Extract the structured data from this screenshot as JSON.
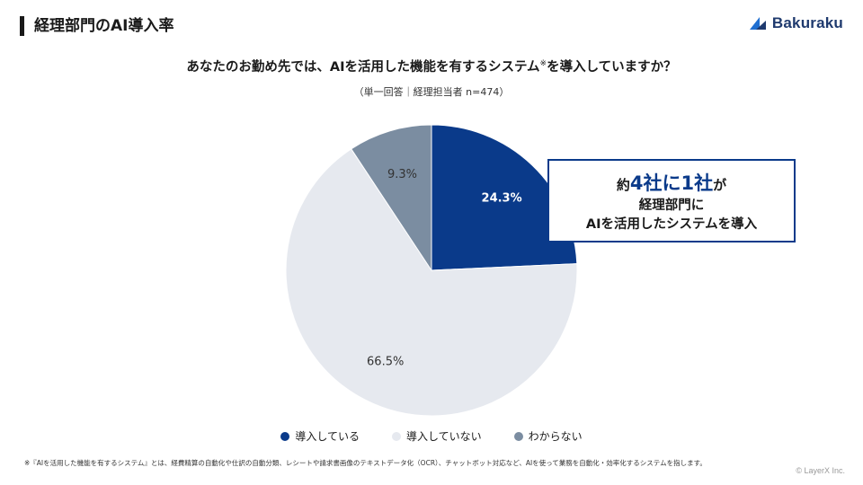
{
  "header": {
    "title": "経理部門のAI導入率"
  },
  "logo": {
    "text": "Bakuraku"
  },
  "question": {
    "text": "あなたのお勤め先では、AIを活用した機能を有するシステム",
    "mark": "※",
    "text_after": "を導入していますか？"
  },
  "sample": {
    "text": "（単一回答｜経理担当者 n=474）"
  },
  "callout": {
    "prefix": "約",
    "emphasis": "4社に1社",
    "suffix": "が",
    "line2": "経理部門に",
    "line3": "AIを活用したシステムを導入"
  },
  "footnote": {
    "text": "※『AIを活用した機能を有するシステム』とは、経費精算の自動化や仕訳の自動分類、レシートや請求書画像のテキストデータ化（OCR）、チャットボット対応など、AIを使って業務を自動化・効率化するシステムを指します。"
  },
  "copyright": {
    "text": "© LayerX Inc."
  },
  "colors": {
    "accent": "#0a3a8a",
    "light": "#e6e9ef",
    "gray": "#7b8da1"
  },
  "chart_data": {
    "type": "pie",
    "title": "",
    "slices": [
      {
        "name": "導入している",
        "value": 24.3,
        "label": "24.3%",
        "color": "#0a3a8a",
        "label_color": "#ffffff"
      },
      {
        "name": "導入していない",
        "value": 66.5,
        "label": "66.5%",
        "color": "#e6e9ef",
        "label_color": "#333333"
      },
      {
        "name": "わからない",
        "value": 9.3,
        "label": "9.3%",
        "color": "#7b8da1",
        "label_color": "#333333"
      }
    ],
    "start": "12 o'clock",
    "direction": "clockwise",
    "legend_position": "bottom"
  }
}
